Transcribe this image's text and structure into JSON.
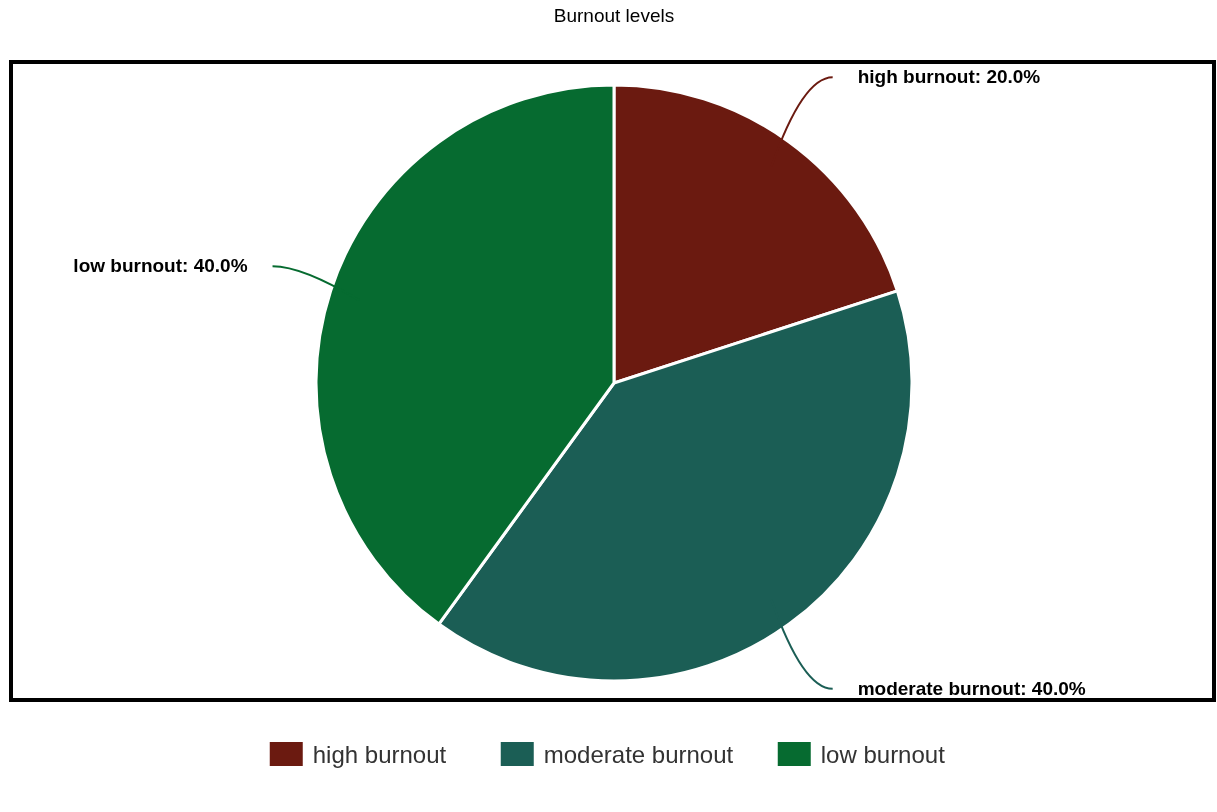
{
  "chart_data": {
    "type": "pie",
    "title": "Burnout levels",
    "categories": [
      "high burnout",
      "moderate burnout",
      "low burnout"
    ],
    "values": [
      20,
      40,
      40
    ],
    "value_labels": [
      "high burnout: 20.0%",
      "moderate burnout: 40.0%",
      "low burnout: 40.0%"
    ],
    "colors": [
      "#6b1a10",
      "#1b5e55",
      "#066b30"
    ],
    "legend": "bottom"
  }
}
